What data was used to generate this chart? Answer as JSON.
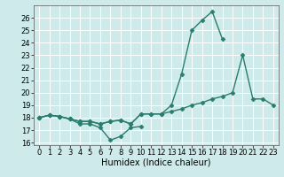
{
  "xlabel": "Humidex (Indice chaleur)",
  "x_values": [
    0,
    1,
    2,
    3,
    4,
    5,
    6,
    7,
    8,
    9,
    10,
    11,
    12,
    13,
    14,
    15,
    16,
    17,
    18,
    19,
    20,
    21,
    22,
    23
  ],
  "line1": [
    18.0,
    18.2,
    18.1,
    17.9,
    17.5,
    17.5,
    17.2,
    16.2,
    16.5,
    17.2,
    17.3,
    null,
    null,
    null,
    null,
    null,
    null,
    null,
    null,
    null,
    null,
    null,
    null,
    null
  ],
  "line2": [
    18.0,
    18.2,
    18.1,
    17.9,
    17.7,
    17.7,
    17.5,
    17.7,
    17.8,
    17.5,
    18.3,
    18.3,
    18.3,
    18.5,
    18.7,
    19.0,
    19.2,
    19.5,
    19.7,
    20.0,
    23.0,
    19.5,
    19.5,
    19.0
  ],
  "line3": [
    18.0,
    18.2,
    18.1,
    17.9,
    17.7,
    17.7,
    17.5,
    17.7,
    17.8,
    17.5,
    18.3,
    18.3,
    18.3,
    19.0,
    21.5,
    25.0,
    25.8,
    26.5,
    24.3,
    null,
    null,
    null,
    null,
    null
  ],
  "ylim_min": 15.8,
  "ylim_max": 27.0,
  "xlim_min": -0.5,
  "xlim_max": 23.5,
  "yticks": [
    16,
    17,
    18,
    19,
    20,
    21,
    22,
    23,
    24,
    25,
    26
  ],
  "xticks": [
    0,
    1,
    2,
    3,
    4,
    5,
    6,
    7,
    8,
    9,
    10,
    11,
    12,
    13,
    14,
    15,
    16,
    17,
    18,
    19,
    20,
    21,
    22,
    23
  ],
  "line_color": "#2a7d6e",
  "bg_color": "#ceeaea",
  "grid_color": "#ffffff",
  "marker": "D",
  "markersize": 2.5,
  "linewidth": 1.0,
  "tick_fontsize": 6.0,
  "xlabel_fontsize": 7.0
}
